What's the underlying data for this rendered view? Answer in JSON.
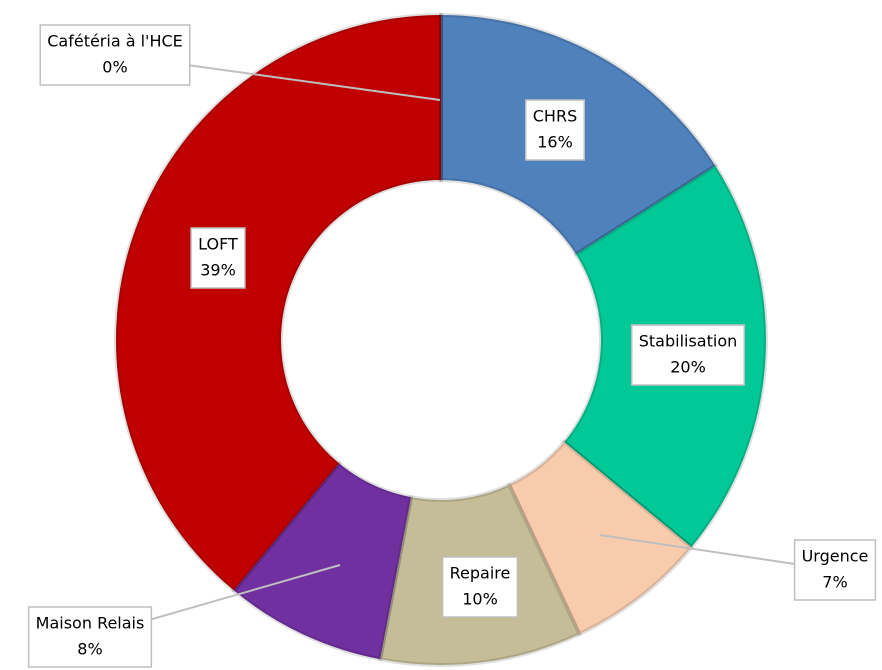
{
  "chart_data": {
    "type": "donut",
    "categories": [
      "CHRS",
      "Stabilisation",
      "Urgence",
      "Repaire",
      "Maison Relais",
      "LOFT",
      "Cafétéria à l'HCE"
    ],
    "values": [
      16,
      20,
      7,
      10,
      8,
      39,
      0
    ],
    "value_labels": [
      "16%",
      "20%",
      "7%",
      "10%",
      "8%",
      "39%",
      "0%"
    ],
    "colors": [
      "#4f81bd",
      "#00c896",
      "#f8cbad",
      "#c4bd97",
      "#7030a0",
      "#c00000",
      "#1f3864"
    ]
  }
}
